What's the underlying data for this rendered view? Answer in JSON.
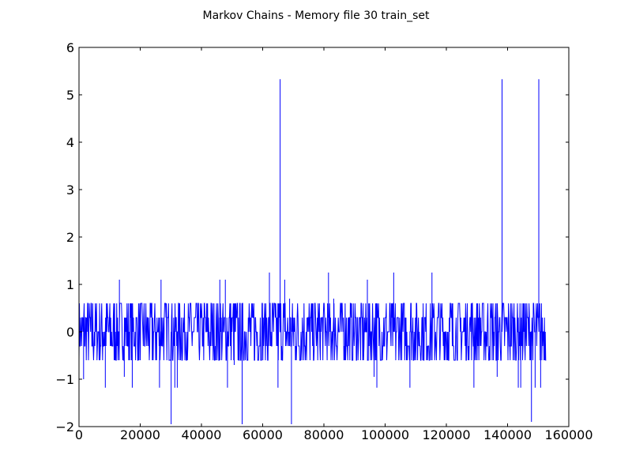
{
  "chart_data": {
    "type": "line",
    "title": "Markov Chains - Memory file 30 train_set",
    "xlabel": "",
    "ylabel": "",
    "xlim": [
      0,
      160000
    ],
    "ylim": [
      -2,
      6
    ],
    "x_ticks": [
      0,
      20000,
      40000,
      60000,
      80000,
      100000,
      120000,
      140000,
      160000
    ],
    "y_ticks": [
      -2,
      -1,
      0,
      1,
      2,
      3,
      4,
      5,
      6
    ],
    "x_tick_labels": [
      "0",
      "20000",
      "40000",
      "60000",
      "80000",
      "100000",
      "120000",
      "140000",
      "160000"
    ],
    "y_tick_labels": [
      "−2",
      "−1",
      "0",
      "1",
      "2",
      "3",
      "4",
      "5",
      "6"
    ],
    "grid": false,
    "legend": "none",
    "line_color": "#0000ff",
    "n_points": 152600,
    "baseline_range": [
      -0.6,
      0.6
    ],
    "baseline_levels": [
      -0.6,
      -0.3,
      0,
      0.3,
      0.6
    ],
    "spikes": [
      {
        "x": 65700,
        "y": 5.33
      },
      {
        "x": 138200,
        "y": 5.33
      },
      {
        "x": 150200,
        "y": 5.33
      },
      {
        "x": 62200,
        "y": 1.25
      },
      {
        "x": 81500,
        "y": 1.25
      },
      {
        "x": 102800,
        "y": 1.25
      },
      {
        "x": 115300,
        "y": 1.25
      },
      {
        "x": 13200,
        "y": 1.1
      },
      {
        "x": 26800,
        "y": 1.1
      },
      {
        "x": 46000,
        "y": 1.1
      },
      {
        "x": 47800,
        "y": 1.1
      },
      {
        "x": 67200,
        "y": 1.1
      },
      {
        "x": 94200,
        "y": 1.1
      },
      {
        "x": 68800,
        "y": 0.7
      },
      {
        "x": 83200,
        "y": 0.7
      },
      {
        "x": 30100,
        "y": -1.95
      },
      {
        "x": 53300,
        "y": -1.95
      },
      {
        "x": 69400,
        "y": -1.95
      },
      {
        "x": 147800,
        "y": -1.9
      },
      {
        "x": 8600,
        "y": -1.18
      },
      {
        "x": 17400,
        "y": -1.18
      },
      {
        "x": 26300,
        "y": -1.18
      },
      {
        "x": 31300,
        "y": -1.18
      },
      {
        "x": 32100,
        "y": -1.18
      },
      {
        "x": 48500,
        "y": -1.18
      },
      {
        "x": 65000,
        "y": -1.18
      },
      {
        "x": 97300,
        "y": -1.18
      },
      {
        "x": 108100,
        "y": -1.18
      },
      {
        "x": 129000,
        "y": -1.18
      },
      {
        "x": 143500,
        "y": -1.18
      },
      {
        "x": 144300,
        "y": -1.18
      },
      {
        "x": 149000,
        "y": -1.18
      },
      {
        "x": 150800,
        "y": -1.18
      },
      {
        "x": 1500,
        "y": -1.0
      },
      {
        "x": 14800,
        "y": -0.95
      },
      {
        "x": 96400,
        "y": -0.95
      },
      {
        "x": 136600,
        "y": -0.95
      },
      {
        "x": 50700,
        "y": -0.7
      }
    ]
  }
}
